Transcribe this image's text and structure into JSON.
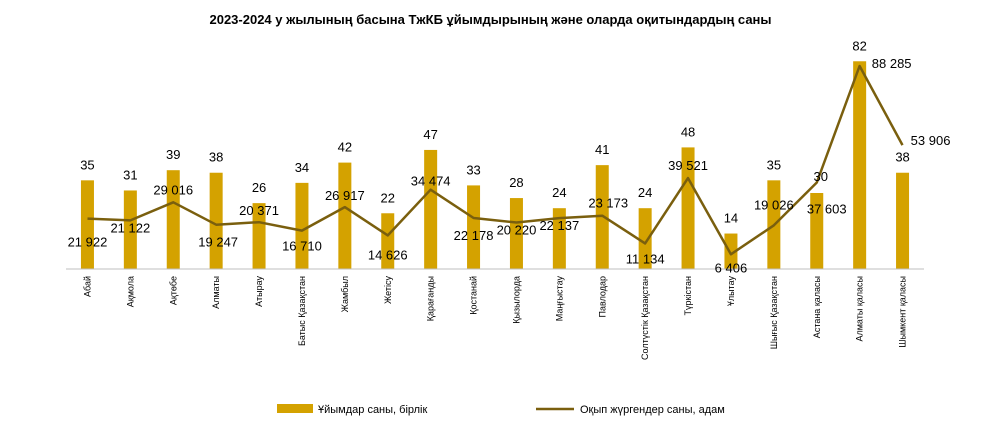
{
  "chart_data": {
    "type": "bar",
    "title": "2023-2024  у жылының басына ТжКБ ұйымдырының және оларда оқитындардың саны",
    "categories": [
      "Абай",
      "Ақмола",
      "Ақтөбе",
      "Алматы",
      "Атырау",
      "Батыс Қазақстан",
      "Жамбыл",
      "Жетісу",
      "Қарағанды",
      "Қостанай",
      "Қызылорда",
      "Маңғыстау",
      "Павлодар",
      "Солтүстік Қазақстан",
      "Түркістан",
      "Ұлытау",
      "Шығыс  Қазақстан",
      "Астана қаласы",
      "Алматы қаласы",
      "Шымкент қаласы"
    ],
    "series": [
      {
        "name": "Ұйымдар саны, бірлік",
        "type": "bar",
        "color": "#d4a200",
        "values": [
          35,
          31,
          39,
          38,
          26,
          34,
          42,
          22,
          47,
          33,
          28,
          24,
          41,
          24,
          48,
          14,
          35,
          30,
          82,
          38
        ],
        "labels": [
          "35",
          "31",
          "39",
          "38",
          "26",
          "34",
          "42",
          "22",
          "47",
          "33",
          "28",
          "24",
          "41",
          "24",
          "48",
          "14",
          "35",
          "30",
          "82",
          "38"
        ]
      },
      {
        "name": "Оқып жүргендер саны, адам",
        "type": "line",
        "color": "#7a5f0e",
        "values": [
          21922,
          21122,
          29016,
          19247,
          20371,
          16710,
          26917,
          14626,
          34474,
          22178,
          20220,
          22137,
          23173,
          11134,
          39521,
          6406,
          19026,
          37603,
          88285,
          53906
        ],
        "labels": [
          "21 922",
          "21 122",
          "29 016",
          "19 247",
          "20 371",
          "16 710",
          "26 917",
          "14 626",
          "34 474",
          "22 178",
          "20 220",
          "22 137",
          "23 173",
          "11 134",
          "39 521",
          "6 406",
          "19 026",
          "37 603",
          "88 285",
          "53 906"
        ]
      }
    ],
    "bar_ylim": [
      0,
      85
    ],
    "line_ylim": [
      0,
      94000
    ],
    "legend_position": "bottom",
    "grid": false
  }
}
